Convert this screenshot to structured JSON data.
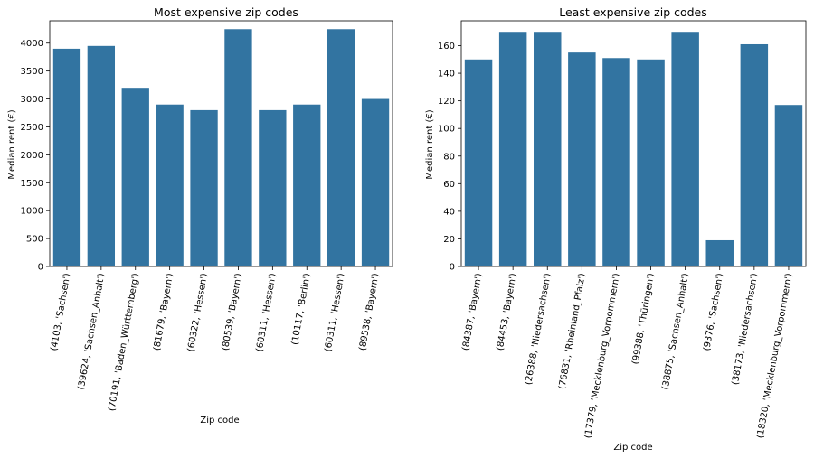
{
  "chart_data": [
    {
      "type": "bar",
      "title": "Most expensive zip codes",
      "xlabel": "Zip code",
      "ylabel": "Median rent (€)",
      "ylim": [
        0,
        4400
      ],
      "yticks": [
        0,
        500,
        1000,
        1500,
        2000,
        2500,
        3000,
        3500,
        4000
      ],
      "color": "#3274a1",
      "categories": [
        "(4103, 'Sachsen')",
        "(39624, 'Sachsen_Anhalt')",
        "(70191, 'Baden_Württemberg')",
        "(81679, 'Bayern')",
        "(60322, 'Hessen')",
        "(80539, 'Bayern')",
        "(60311, 'Hessen')",
        "(10117, 'Berlin')",
        "(60311, 'Hessen')",
        "(89538, 'Bayern')"
      ],
      "values": [
        3900,
        3950,
        3200,
        2900,
        2800,
        4250,
        2800,
        2900,
        4250,
        3000
      ]
    },
    {
      "type": "bar",
      "title": "Least expensive zip codes",
      "xlabel": "Zip code",
      "ylabel": "Median rent (€)",
      "ylim": [
        0,
        178
      ],
      "yticks": [
        0,
        20,
        40,
        60,
        80,
        100,
        120,
        140,
        160
      ],
      "color": "#3274a1",
      "categories": [
        "(84387, 'Bayern')",
        "(84453, 'Bayern')",
        "(26388, 'Niedersachsen')",
        "(76831, 'Rheinland_Pfalz')",
        "(17379, 'Mecklenburg_Vorpommern')",
        "(99388, 'Thüringen')",
        "(38875, 'Sachsen_Anhalt')",
        "(9376, 'Sachsen')",
        "(38173, 'Niedersachsen')",
        "(18320, 'Mecklenburg_Vorpommern')"
      ],
      "values": [
        150,
        170,
        170,
        155,
        151,
        150,
        170,
        19,
        161,
        117
      ]
    }
  ]
}
